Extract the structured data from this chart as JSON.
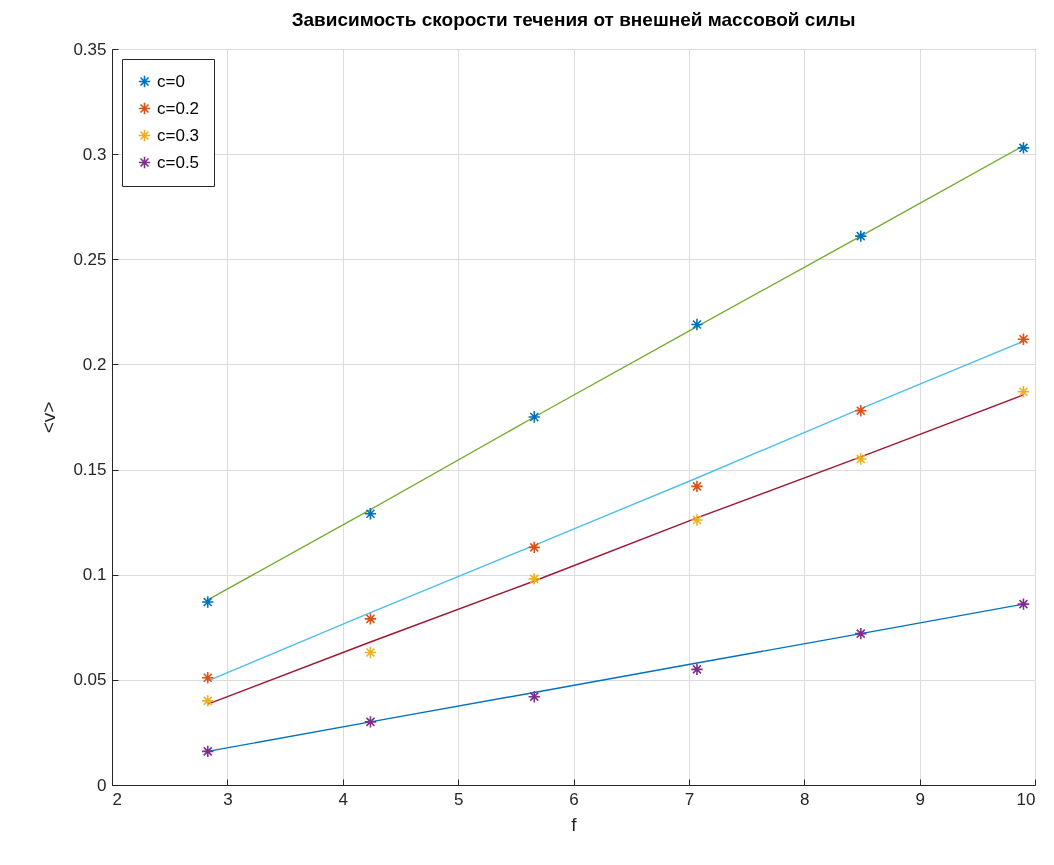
{
  "chart_data": {
    "type": "scatter",
    "title": "Зависимость скорости течения от внешней массовой силы",
    "xlabel": "f",
    "ylabel": "<v>",
    "x": [
      2.83,
      4.24,
      5.66,
      7.07,
      8.49,
      9.9
    ],
    "xlim": [
      2,
      10
    ],
    "xticks": [
      2,
      3,
      4,
      5,
      6,
      7,
      8,
      9,
      10
    ],
    "ylim": [
      0,
      0.35
    ],
    "yticks": [
      0,
      0.05,
      0.1,
      0.15,
      0.2,
      0.25,
      0.3,
      0.35
    ],
    "grid": true,
    "legend": "top left",
    "series": [
      {
        "name": "c=0",
        "marker": "cross",
        "color": "#0072bd",
        "values": [
          0.087,
          0.129,
          0.175,
          0.219,
          0.261,
          0.303
        ]
      },
      {
        "name": "c=0.2",
        "marker": "cross",
        "color": "#d95319",
        "values": [
          0.051,
          0.079,
          0.113,
          0.142,
          0.178,
          0.212
        ]
      },
      {
        "name": "c=0.3",
        "marker": "cross",
        "color": "#edb120",
        "values": [
          0.04,
          0.063,
          0.098,
          0.126,
          0.155,
          0.187
        ]
      },
      {
        "name": "c=0.5",
        "marker": "cross",
        "color": "#7e2f8e",
        "values": [
          0.016,
          0.03,
          0.042,
          0.055,
          0.072,
          0.086
        ]
      },
      {
        "type": "line",
        "line_style": "solid",
        "color": "#77ac30",
        "values": [
          0.088,
          0.131,
          0.175,
          0.218,
          0.261,
          0.304
        ]
      },
      {
        "type": "line",
        "line_style": "solid",
        "color": "#4dbeee",
        "values": [
          0.0495,
          0.082,
          0.114,
          0.146,
          0.179,
          0.211
        ]
      },
      {
        "type": "line",
        "line_style": "solid",
        "color": "#a2142f",
        "values": [
          0.0385,
          0.068,
          0.097,
          0.127,
          0.156,
          0.1855
        ]
      },
      {
        "type": "line",
        "line_style": "solid",
        "color": "#0072bd",
        "values": [
          0.016,
          0.03,
          0.044,
          0.058,
          0.072,
          0.086
        ]
      }
    ]
  }
}
